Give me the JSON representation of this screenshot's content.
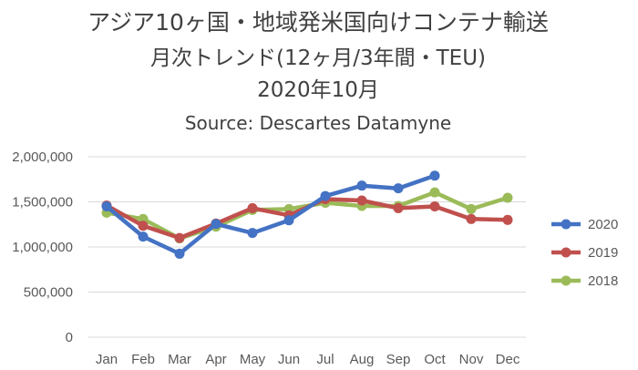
{
  "title_lines": [
    "アジア10ヶ国・地域発米国向けコンテナ輸送",
    "月次トレンド(12ヶ月/3年間・TEU)",
    "2020年10月"
  ],
  "source_line": "Source: Descartes Datamyne",
  "chart_data": {
    "type": "line",
    "categories": [
      "Jan",
      "Feb",
      "Mar",
      "Apr",
      "May",
      "Jun",
      "Jul",
      "Aug",
      "Sep",
      "Oct",
      "Nov",
      "Dec"
    ],
    "ylim": [
      0,
      2000000
    ],
    "yticks": [
      0,
      500000,
      1000000,
      1500000,
      2000000
    ],
    "ytick_labels": [
      "0",
      "500,000",
      "1,000,000",
      "1,500,000",
      "2,000,000"
    ],
    "grid": true,
    "legend_position": "right",
    "series": [
      {
        "name": "2020",
        "color": "#4472c4",
        "values": [
          1450000,
          1115000,
          925000,
          1255000,
          1155000,
          1295000,
          1565000,
          1680000,
          1650000,
          1790000,
          null,
          null
        ]
      },
      {
        "name": "2019",
        "color": "#c0504d",
        "values": [
          1460000,
          1235000,
          1100000,
          1260000,
          1430000,
          1350000,
          1530000,
          1515000,
          1430000,
          1450000,
          1310000,
          1300000
        ]
      },
      {
        "name": "2018",
        "color": "#9bbb59",
        "values": [
          1380000,
          1310000,
          1095000,
          1225000,
          1410000,
          1420000,
          1490000,
          1455000,
          1455000,
          1605000,
          1420000,
          1545000
        ]
      }
    ]
  }
}
